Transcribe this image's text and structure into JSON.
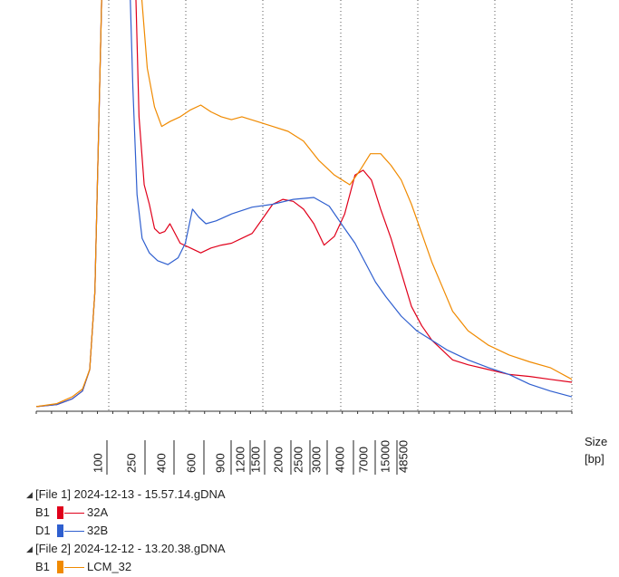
{
  "chart_data": {
    "type": "line",
    "x_axis_title": "Size",
    "x_axis_unit": "[bp]",
    "x_tick_labels": [
      "100",
      "250",
      "400",
      "600",
      "900",
      "1200",
      "1500",
      "2000",
      "2500",
      "3000",
      "4000",
      "7000",
      "15000",
      "48500"
    ],
    "ylim_note": "signal clipped at top (lower marker peaks exceed plot area)",
    "grid": "dotted vertical gridlines",
    "series": [
      {
        "name": "32A",
        "well": "B1",
        "color": "#e0001b",
        "points": [
          [
            0,
            2
          ],
          [
            20,
            4
          ],
          [
            35,
            10
          ],
          [
            45,
            18
          ],
          [
            52,
            40
          ],
          [
            57,
            120
          ],
          [
            61,
            300
          ],
          [
            64,
            450
          ],
          [
            66,
            520
          ],
          [
            68,
            700
          ],
          [
            72,
            900
          ],
          [
            78,
            1200
          ],
          [
            86,
            1200
          ],
          [
            91,
            1000
          ],
          [
            93,
            800
          ],
          [
            95,
            600
          ],
          [
            97,
            420
          ],
          [
            100,
            300
          ],
          [
            105,
            230
          ],
          [
            110,
            210
          ],
          [
            115,
            185
          ],
          [
            120,
            180
          ],
          [
            125,
            182
          ],
          [
            130,
            190
          ],
          [
            140,
            170
          ],
          [
            150,
            165
          ],
          [
            160,
            160
          ],
          [
            170,
            165
          ],
          [
            180,
            168
          ],
          [
            190,
            170
          ],
          [
            200,
            175
          ],
          [
            210,
            180
          ],
          [
            220,
            195
          ],
          [
            230,
            210
          ],
          [
            240,
            215
          ],
          [
            250,
            213
          ],
          [
            260,
            205
          ],
          [
            270,
            190
          ],
          [
            280,
            168
          ],
          [
            290,
            177
          ],
          [
            300,
            200
          ],
          [
            310,
            240
          ],
          [
            318,
            245
          ],
          [
            326,
            235
          ],
          [
            335,
            205
          ],
          [
            345,
            175
          ],
          [
            355,
            140
          ],
          [
            365,
            105
          ],
          [
            375,
            85
          ],
          [
            385,
            70
          ],
          [
            395,
            60
          ],
          [
            405,
            50
          ],
          [
            420,
            45
          ],
          [
            440,
            40
          ],
          [
            460,
            35
          ],
          [
            480,
            33
          ],
          [
            500,
            30
          ],
          [
            521,
            27
          ]
        ]
      },
      {
        "name": "32B",
        "well": "D1",
        "color": "#2f5fcf",
        "points": [
          [
            0,
            2
          ],
          [
            20,
            4
          ],
          [
            35,
            10
          ],
          [
            45,
            18
          ],
          [
            52,
            40
          ],
          [
            57,
            120
          ],
          [
            61,
            300
          ],
          [
            64,
            450
          ],
          [
            66,
            520
          ],
          [
            68,
            700
          ],
          [
            72,
            900
          ],
          [
            78,
            1200
          ],
          [
            84,
            1200
          ],
          [
            87,
            900
          ],
          [
            89,
            700
          ],
          [
            91,
            500
          ],
          [
            94,
            330
          ],
          [
            98,
            220
          ],
          [
            103,
            175
          ],
          [
            110,
            160
          ],
          [
            118,
            152
          ],
          [
            128,
            148
          ],
          [
            138,
            155
          ],
          [
            145,
            170
          ],
          [
            152,
            205
          ],
          [
            158,
            197
          ],
          [
            165,
            190
          ],
          [
            175,
            193
          ],
          [
            190,
            200
          ],
          [
            210,
            207
          ],
          [
            230,
            210
          ],
          [
            250,
            215
          ],
          [
            270,
            217
          ],
          [
            285,
            208
          ],
          [
            300,
            185
          ],
          [
            310,
            170
          ],
          [
            320,
            150
          ],
          [
            330,
            130
          ],
          [
            340,
            115
          ],
          [
            355,
            95
          ],
          [
            370,
            80
          ],
          [
            385,
            70
          ],
          [
            400,
            60
          ],
          [
            420,
            50
          ],
          [
            440,
            42
          ],
          [
            460,
            35
          ],
          [
            480,
            25
          ],
          [
            500,
            18
          ],
          [
            521,
            12
          ]
        ]
      },
      {
        "name": "LCM_32",
        "well": "B1",
        "color": "#f08a00",
        "points": [
          [
            0,
            2
          ],
          [
            20,
            5
          ],
          [
            35,
            12
          ],
          [
            45,
            20
          ],
          [
            52,
            40
          ],
          [
            57,
            120
          ],
          [
            61,
            300
          ],
          [
            64,
            450
          ],
          [
            66,
            520
          ],
          [
            68,
            700
          ],
          [
            72,
            900
          ],
          [
            78,
            1200
          ],
          [
            88,
            1200
          ],
          [
            92,
            1000
          ],
          [
            95,
            750
          ],
          [
            98,
            560
          ],
          [
            102,
            430
          ],
          [
            108,
            350
          ],
          [
            115,
            310
          ],
          [
            122,
            290
          ],
          [
            130,
            295
          ],
          [
            140,
            300
          ],
          [
            150,
            307
          ],
          [
            160,
            312
          ],
          [
            170,
            305
          ],
          [
            180,
            300
          ],
          [
            190,
            297
          ],
          [
            200,
            300
          ],
          [
            215,
            295
          ],
          [
            230,
            290
          ],
          [
            245,
            285
          ],
          [
            260,
            275
          ],
          [
            275,
            255
          ],
          [
            290,
            240
          ],
          [
            305,
            230
          ],
          [
            315,
            245
          ],
          [
            325,
            262
          ],
          [
            335,
            262
          ],
          [
            345,
            250
          ],
          [
            355,
            235
          ],
          [
            365,
            210
          ],
          [
            375,
            180
          ],
          [
            385,
            150
          ],
          [
            395,
            125
          ],
          [
            405,
            100
          ],
          [
            420,
            80
          ],
          [
            440,
            65
          ],
          [
            460,
            55
          ],
          [
            480,
            48
          ],
          [
            500,
            42
          ],
          [
            521,
            30
          ]
        ]
      }
    ]
  },
  "legend": {
    "files": [
      {
        "label": "[File 1] 2024-12-13 - 15.57.14.gDNA",
        "samples": [
          {
            "well": "B1",
            "name": "32A",
            "color": "#e0001b"
          },
          {
            "well": "D1",
            "name": "32B",
            "color": "#2f5fcf"
          }
        ]
      },
      {
        "label": "[File 2] 2024-12-12 - 13.20.38.gDNA",
        "samples": [
          {
            "well": "B1",
            "name": "LCM_32",
            "color": "#f08a00"
          }
        ]
      }
    ]
  }
}
